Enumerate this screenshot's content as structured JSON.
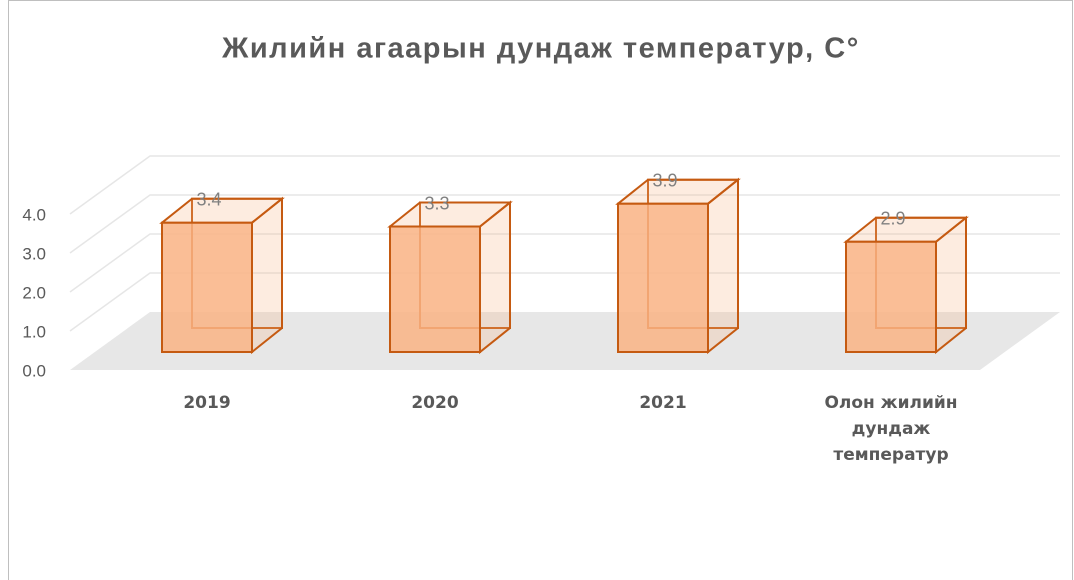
{
  "chart_data": {
    "type": "bar3d",
    "title": "Жилийн агаарын дундаж температур, С°",
    "categories": [
      "2019",
      "2020",
      "2021",
      "Олон жилийн дундаж температур"
    ],
    "values": [
      3.4,
      3.3,
      3.9,
      2.9
    ],
    "color": "#f9b384",
    "edge_color": "#c55a11",
    "ylim": [
      0,
      4
    ],
    "yticks": [
      {
        "value": 0,
        "label": "0.0"
      },
      {
        "value": 1,
        "label": "1.0"
      },
      {
        "value": 2,
        "label": "2.0"
      },
      {
        "value": 3,
        "label": "3.0"
      },
      {
        "value": 4,
        "label": "4.0"
      }
    ],
    "grid": true
  }
}
